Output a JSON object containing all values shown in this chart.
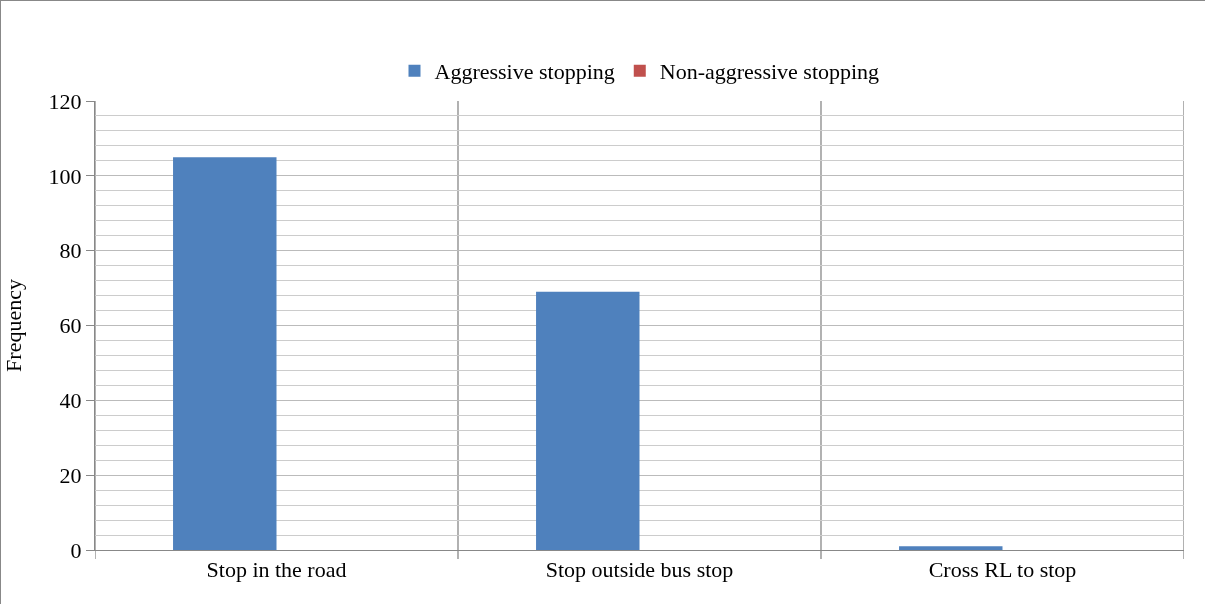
{
  "chart_data": {
    "type": "bar",
    "ylabel": "Frequency",
    "categories": [
      "Stop in the road",
      "Stop outside bus stop",
      "Cross RL to stop"
    ],
    "series": [
      {
        "name": "Aggressive stopping",
        "color": "#4f81bd",
        "values": [
          105,
          69,
          1
        ]
      },
      {
        "name": "Non-aggressive stopping",
        "color": "#c0504d",
        "values": [
          0,
          0,
          0
        ]
      }
    ],
    "ylim": [
      0,
      120
    ],
    "yticks": [
      0,
      20,
      40,
      60,
      80,
      100,
      120
    ],
    "grid": true,
    "legend": "top"
  }
}
